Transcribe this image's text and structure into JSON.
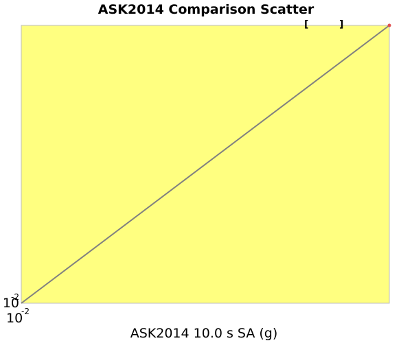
{
  "chart_data": {
    "type": "scatter",
    "title": "ASK2014 Comparison Scatter",
    "xlabel": "ASK2014 10.0 s SA (g)",
    "ylabel": "",
    "x_scale": "log",
    "y_scale": "log",
    "xlim": [
      0.01,
      10
    ],
    "ylim": [
      0.01,
      10
    ],
    "x_tick_labels": [
      {
        "base": "10",
        "exp": "-2",
        "value": 0.01
      }
    ],
    "y_tick_labels": [
      {
        "base": "10",
        "exp": "-2",
        "value": 0.01
      }
    ],
    "reference_line": {
      "x": [
        0.01,
        10
      ],
      "y": [
        0.01,
        10
      ],
      "color": "#808080"
    },
    "series": [
      {
        "color": "#e05050",
        "points": [
          {
            "x": 10,
            "y": 10
          }
        ]
      }
    ],
    "background_color": "#ffff80",
    "grid": false
  }
}
